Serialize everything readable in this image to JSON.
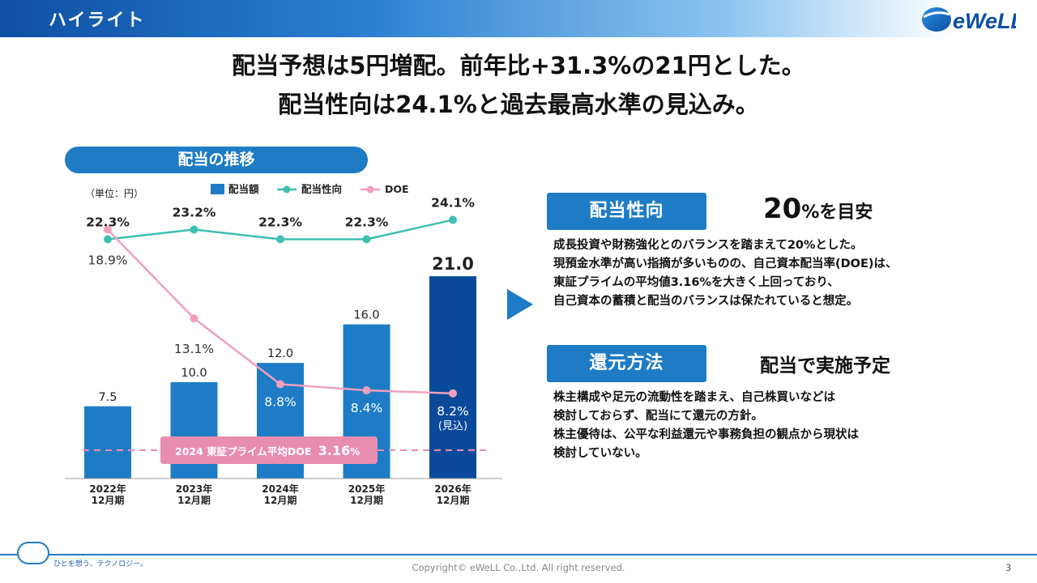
{
  "header": {
    "title": "ハイライト",
    "logo_text": "eWeLL"
  },
  "headline": {
    "line1": "配当予想は5円増配。前年比+31.3%の21円とした。",
    "line2": "配当性向は24.1%と過去最高水準の見込み。"
  },
  "chart_section_title": "配当の推移",
  "chart_data": {
    "type": "bar",
    "title": "配当の推移",
    "unit_label": "（単位：円）",
    "legend": [
      "配当額",
      "配当性向",
      "DOE"
    ],
    "categories": [
      "2022年\n12月期",
      "2023年\n12月期",
      "2024年\n12月期",
      "2025年\n12月期",
      "2026年\n12月期"
    ],
    "series": [
      {
        "name": "配当額",
        "kind": "bar",
        "values": [
          7.5,
          10.0,
          12.0,
          16.0,
          21.0
        ],
        "labels": [
          "7.5",
          "10.0",
          "12.0",
          "16.0",
          "21.0"
        ]
      },
      {
        "name": "配当性向",
        "kind": "line",
        "values": [
          22.3,
          23.2,
          22.3,
          22.3,
          24.1
        ],
        "labels": [
          "22.3%",
          "23.2%",
          "22.3%",
          "22.3%",
          "24.1%"
        ]
      },
      {
        "name": "DOE",
        "kind": "line",
        "values": [
          18.9,
          13.1,
          8.8,
          8.4,
          8.2
        ],
        "labels": [
          "18.9%",
          "13.1%",
          "8.8%",
          "8.4%",
          "8.2%"
        ]
      }
    ],
    "forecast_note": "(見込)",
    "reference_line": {
      "name": "2024 東証プライム平均DOE",
      "value": 3.16,
      "label_prefix": "2024 東証プライム平均DOE",
      "label_value": "3.16",
      "label_unit": "%"
    },
    "colors": {
      "bar": "#1e7cc6",
      "bar_forecast": "#0b4a9a",
      "payout": "#3dbfb2",
      "doe": "#ef9fbf",
      "reference": "#e88db0"
    }
  },
  "payout_policy": {
    "label": "配当性向",
    "target_big": "20",
    "target_small": "%を目安",
    "lines": [
      "成長投資や財務強化とのバランスを踏まえて20%とした。",
      "現預金水準が高い指摘が多いものの、自己資本配当率(DOE)は、",
      "東証プライムの平均値3.16%を大きく上回っており、",
      "自己資本の蓄積と配当のバランスは保たれていると想定。"
    ]
  },
  "return_method": {
    "label": "還元方法",
    "value": "配当で実施予定",
    "lines": [
      "株主構成や足元の流動性を踏まえ、自己株買いなどは",
      "検討しておらず、配当にて還元の方針。",
      "株主優待は、公平な利益還元や事務負担の観点から現状は",
      "検討していない。"
    ]
  },
  "footer": {
    "tagline": "ひとを想う、テクノロジー。",
    "copyright": "Copyright© eWeLL Co.,Ltd. All right reserved.",
    "page": "3"
  },
  "colors": {
    "accent": "#1e7cc6",
    "dark_accent": "#0d4fa3"
  }
}
